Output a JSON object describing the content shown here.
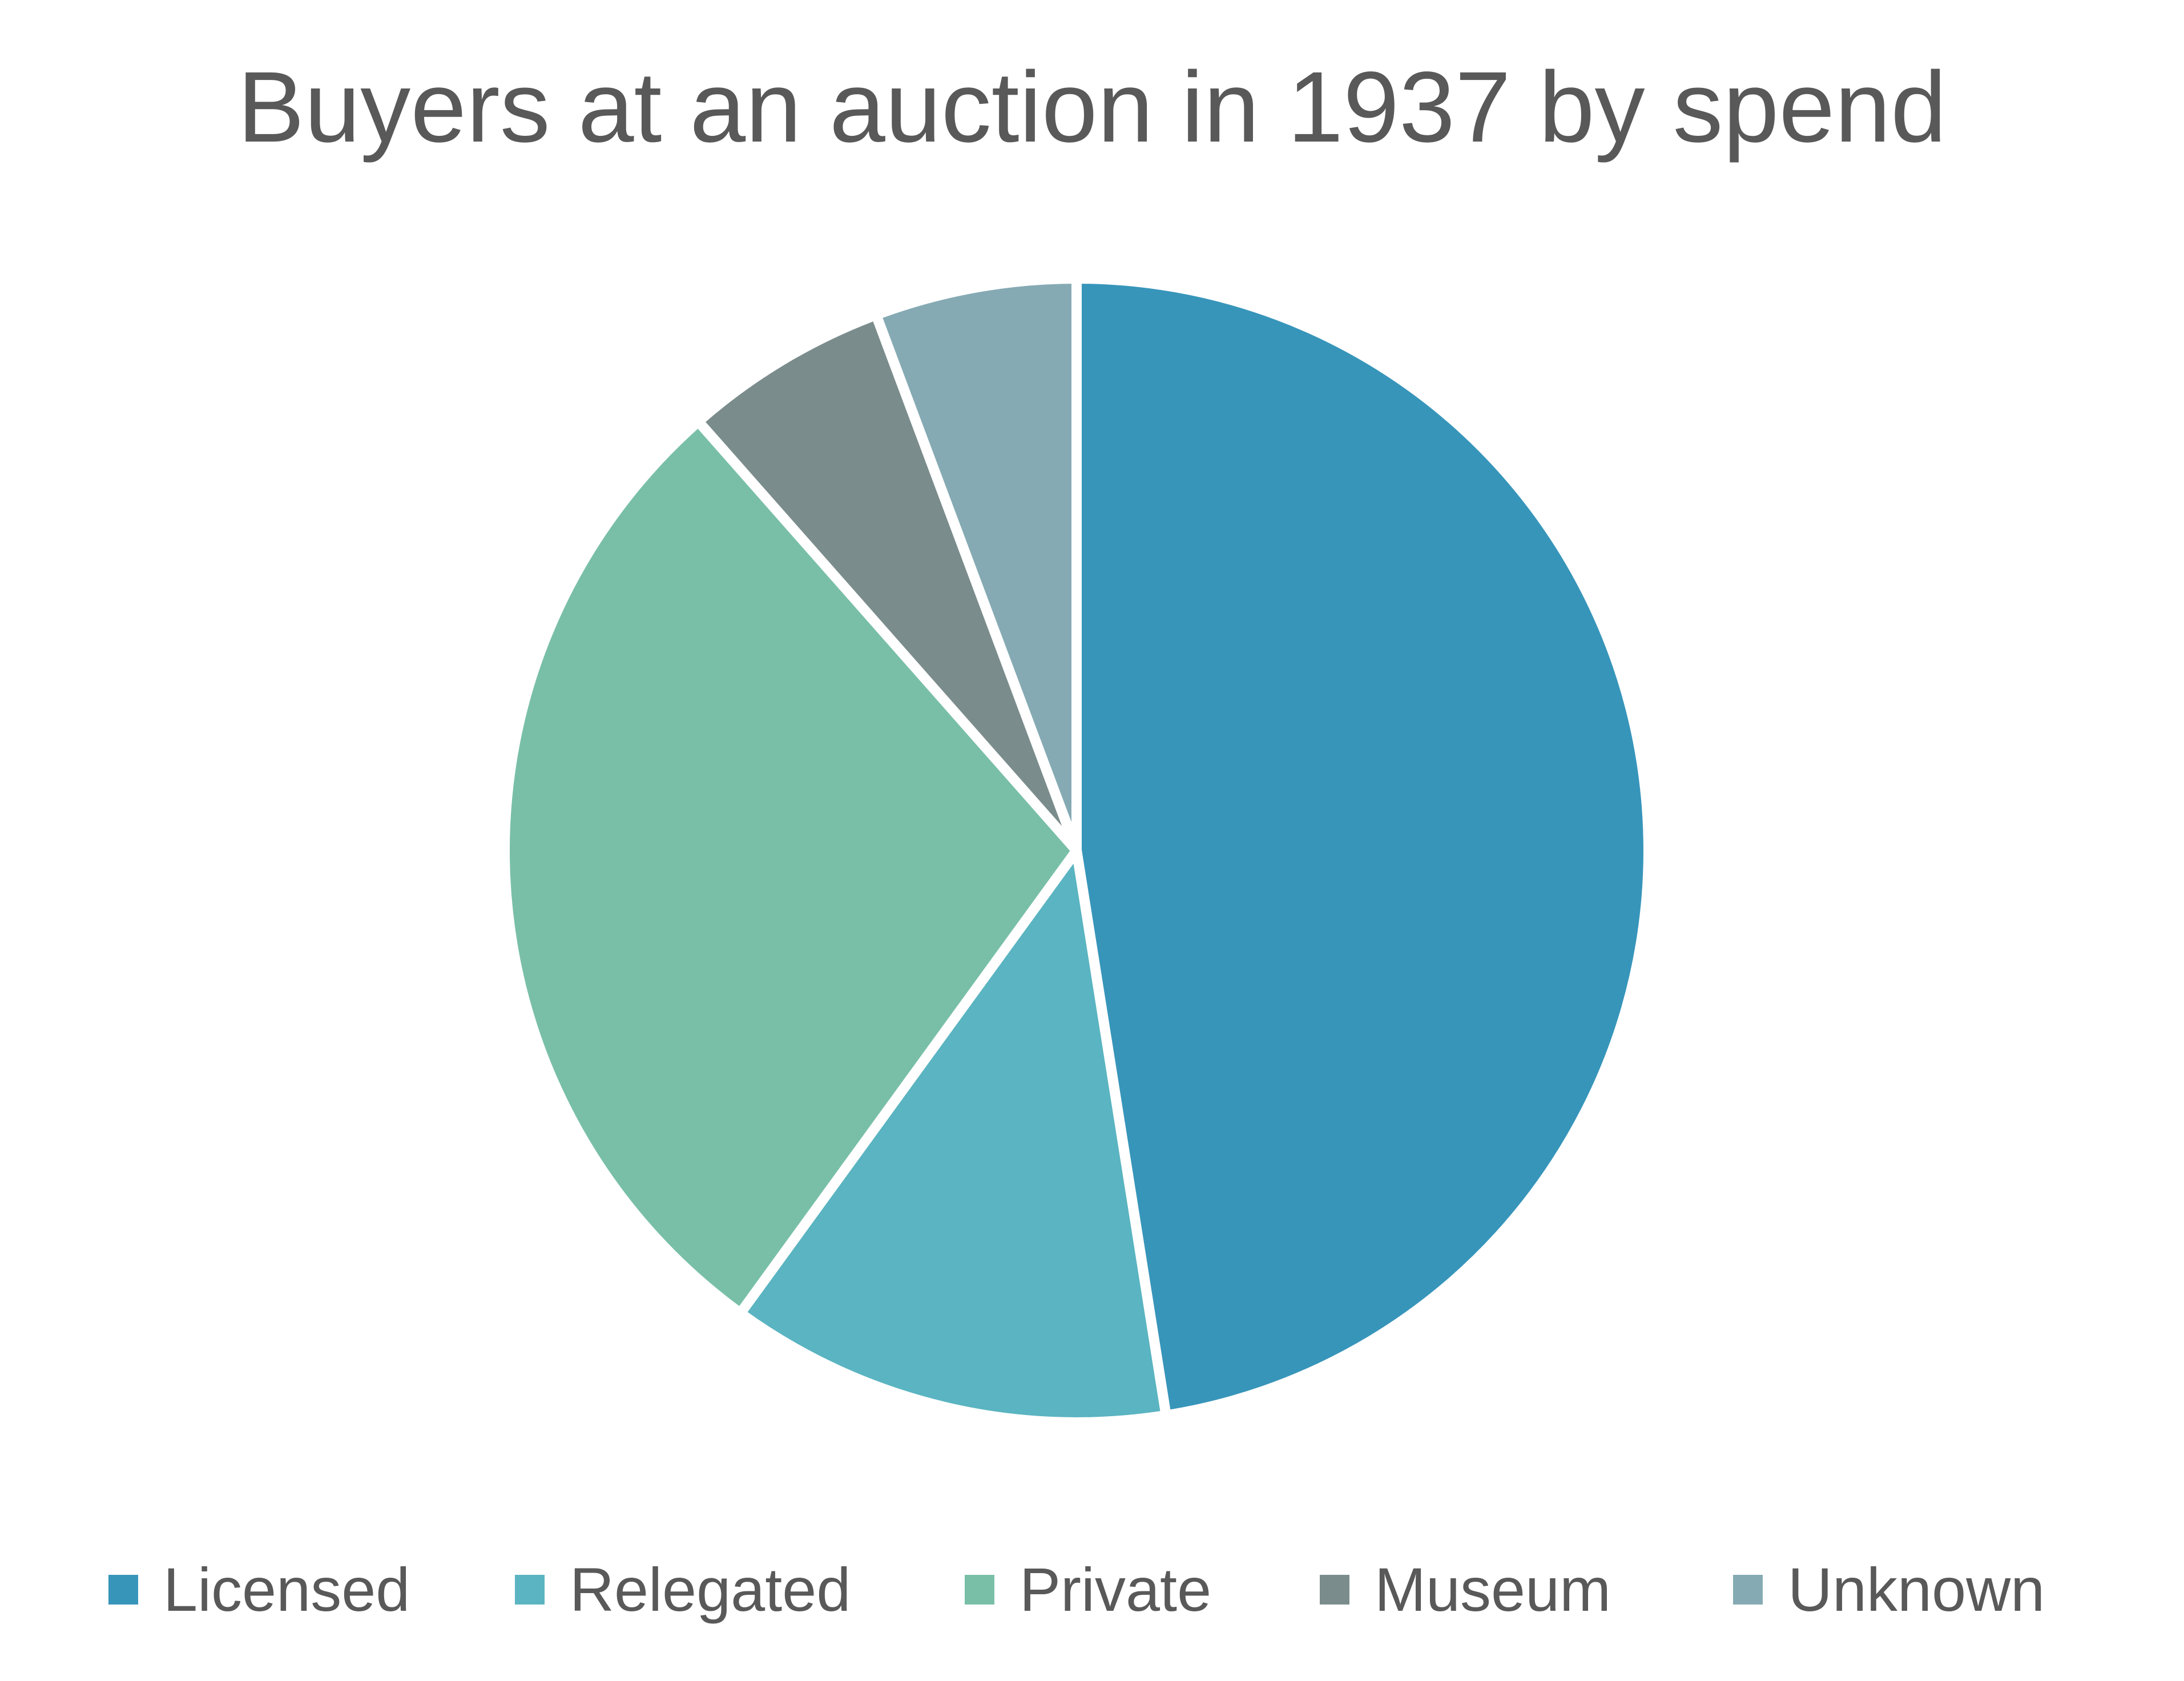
{
  "chart_data": {
    "type": "pie",
    "title": "Buyers at an auction in 1937 by spend",
    "categories": [
      "Licensed",
      "Relegated",
      "Private",
      "Museum",
      "Unknown"
    ],
    "values": [
      47.5,
      12.5,
      28.5,
      5.8,
      5.7
    ],
    "colors": [
      "#3795BA",
      "#5AB4C1",
      "#79BFA8",
      "#7B8C8C",
      "#85AAB4"
    ],
    "start_angle_deg": 0,
    "direction": "clockwise",
    "legend_position": "bottom",
    "slice_border_color": "#FFFFFF"
  }
}
